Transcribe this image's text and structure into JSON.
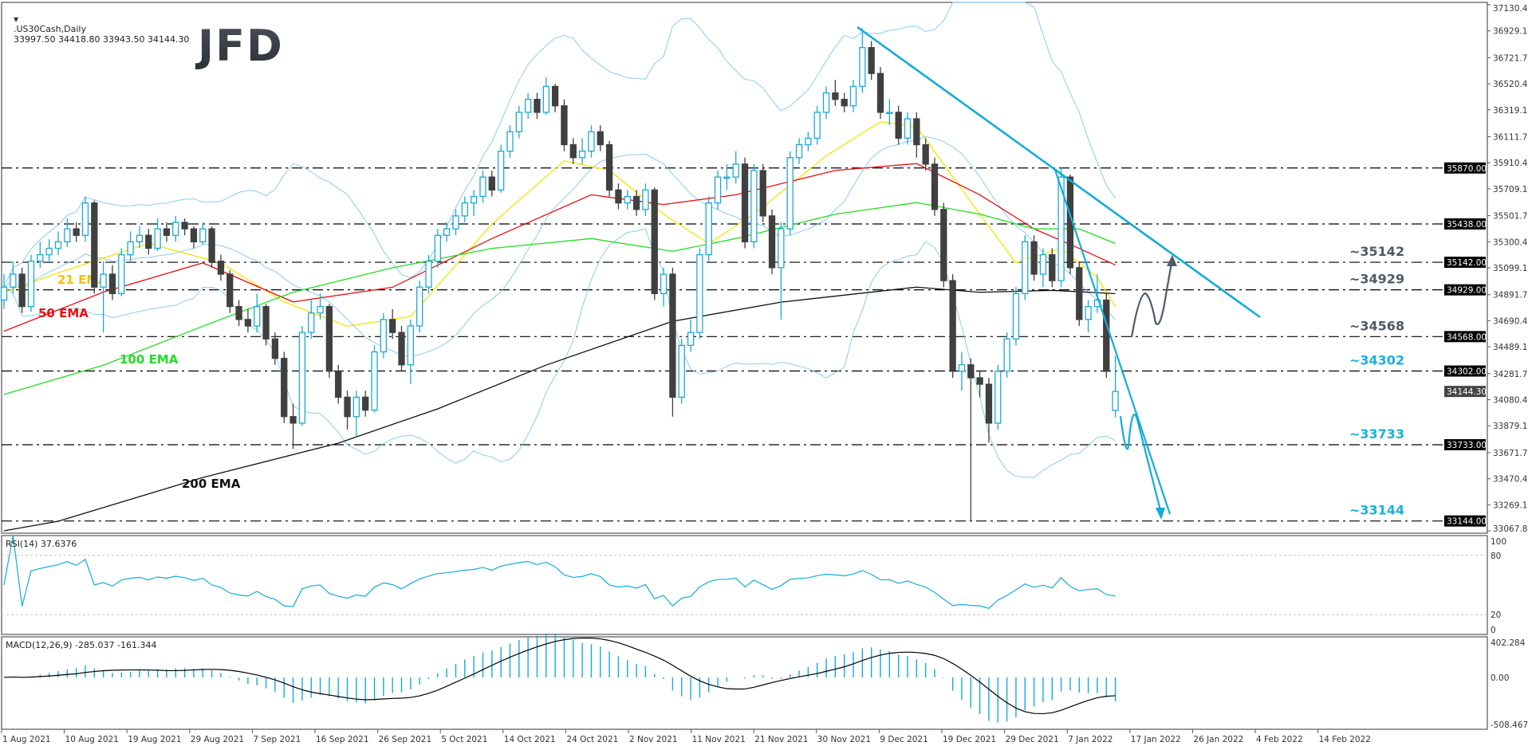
{
  "header": {
    "symbol": ".US30Cash,Daily",
    "ohlc_text": "33997.50 34418.80 33943.50 34144.30",
    "rsi_label": "RSI(14) 37.6376",
    "macd_label": "MACD(12,26,9) -285.037 -161.344"
  },
  "logo": "JFD",
  "colors": {
    "bull": "#1aa9d6",
    "bear": "#404040",
    "ema21": "#f2e600",
    "ema21_label": "#f5c000",
    "ema50": "#e81010",
    "ema100": "#22dd22",
    "ema200": "#111111",
    "bollinger": "#8ccbf0",
    "trendline": "#12acd8",
    "level_dark": "#4f5965",
    "level_cyan": "#16b2dc",
    "rsi": "#12acd8",
    "macd_hist": "#12acd8",
    "macd_signal": "#000000"
  },
  "chart_data": {
    "type": "candlestick",
    "title": ".US30Cash,Daily",
    "ylim": [
      33067.8,
      37130.4
    ],
    "price_ticks": [
      "37130.40",
      "36929.10",
      "36721.70",
      "36520.40",
      "36319.10",
      "36111.70",
      "35910.40",
      "35709.10",
      "35501.70",
      "35300.40",
      "35099.10",
      "34891.70",
      "34690.40",
      "34489.10",
      "34281.70",
      "34080.40",
      "33879.10",
      "33671.70",
      "33470.40",
      "33269.10",
      "33067.80"
    ],
    "date_ticks": [
      "1 Aug 2021",
      "10 Aug 2021",
      "19 Aug 2021",
      "29 Aug 2021",
      "7 Sep 2021",
      "16 Sep 2021",
      "26 Sep 2021",
      "5 Oct 2021",
      "14 Oct 2021",
      "24 Oct 2021",
      "2 Nov 2021",
      "11 Nov 2021",
      "21 Nov 2021",
      "30 Nov 2021",
      "9 Dec 2021",
      "19 Dec 2021",
      "29 Dec 2021",
      "7 Jan 2022",
      "17 Jan 2022",
      "26 Jan 2022",
      "4 Feb 2022",
      "14 Feb 2022"
    ],
    "current_price": "34144.30",
    "ohlc": [
      [
        34850,
        35050,
        34780,
        34950
      ],
      [
        34950,
        35150,
        34900,
        35050
      ],
      [
        35050,
        35100,
        34750,
        34800
      ],
      [
        34800,
        35200,
        34760,
        35150
      ],
      [
        35150,
        35300,
        35100,
        35200
      ],
      [
        35200,
        35320,
        35150,
        35250
      ],
      [
        35250,
        35380,
        35200,
        35300
      ],
      [
        35300,
        35480,
        35260,
        35400
      ],
      [
        35400,
        35450,
        35300,
        35350
      ],
      [
        35350,
        35650,
        35300,
        35600
      ],
      [
        35600,
        35620,
        34900,
        34950
      ],
      [
        34950,
        35150,
        34600,
        35050
      ],
      [
        35050,
        35120,
        34850,
        34900
      ],
      [
        34900,
        35250,
        34880,
        35200
      ],
      [
        35200,
        35380,
        35150,
        35300
      ],
      [
        35300,
        35420,
        35250,
        35350
      ],
      [
        35350,
        35400,
        35200,
        35250
      ],
      [
        35250,
        35480,
        35230,
        35400
      ],
      [
        35400,
        35450,
        35300,
        35350
      ],
      [
        35350,
        35500,
        35300,
        35450
      ],
      [
        35450,
        35480,
        35350,
        35400
      ],
      [
        35400,
        35420,
        35250,
        35300
      ],
      [
        35300,
        35450,
        35280,
        35400
      ],
      [
        35400,
        35420,
        35100,
        35150
      ],
      [
        35150,
        35200,
        35000,
        35050
      ],
      [
        35050,
        35080,
        34750,
        34800
      ],
      [
        34800,
        34850,
        34650,
        34700
      ],
      [
        34700,
        34780,
        34600,
        34650
      ],
      [
        34650,
        34900,
        34600,
        34800
      ],
      [
        34800,
        34820,
        34500,
        34550
      ],
      [
        34550,
        34600,
        34350,
        34400
      ],
      [
        34400,
        34450,
        33900,
        33950
      ],
      [
        33950,
        34050,
        33700,
        33900
      ],
      [
        33900,
        34650,
        33880,
        34600
      ],
      [
        34600,
        34850,
        34550,
        34750
      ],
      [
        34750,
        34900,
        34700,
        34800
      ],
      [
        34800,
        34820,
        34250,
        34300
      ],
      [
        34300,
        34350,
        34050,
        34100
      ],
      [
        34100,
        34150,
        33850,
        33950
      ],
      [
        33950,
        34150,
        33800,
        34100
      ],
      [
        34100,
        34150,
        33950,
        34000
      ],
      [
        34000,
        34500,
        33980,
        34450
      ],
      [
        34450,
        34750,
        34400,
        34700
      ],
      [
        34700,
        34780,
        34550,
        34600
      ],
      [
        34600,
        34650,
        34300,
        34350
      ],
      [
        34350,
        34700,
        34200,
        34650
      ],
      [
        34650,
        35000,
        34600,
        34950
      ],
      [
        34950,
        35200,
        34900,
        35150
      ],
      [
        35150,
        35400,
        35100,
        35350
      ],
      [
        35350,
        35450,
        35300,
        35400
      ],
      [
        35400,
        35550,
        35350,
        35500
      ],
      [
        35500,
        35650,
        35450,
        35600
      ],
      [
        35600,
        35700,
        35500,
        35650
      ],
      [
        35650,
        35850,
        35600,
        35800
      ],
      [
        35800,
        35850,
        35650,
        35700
      ],
      [
        35700,
        36050,
        35680,
        36000
      ],
      [
        36000,
        36200,
        35950,
        36150
      ],
      [
        36150,
        36350,
        36100,
        36300
      ],
      [
        36300,
        36450,
        36250,
        36400
      ],
      [
        36400,
        36450,
        36250,
        36300
      ],
      [
        36300,
        36570,
        36280,
        36500
      ],
      [
        36500,
        36520,
        36300,
        36350
      ],
      [
        36350,
        36400,
        36000,
        36050
      ],
      [
        36050,
        36100,
        35900,
        35950
      ],
      [
        35950,
        36100,
        35900,
        36000
      ],
      [
        36000,
        36200,
        35950,
        36150
      ],
      [
        36150,
        36200,
        36000,
        36050
      ],
      [
        36050,
        36080,
        35650,
        35700
      ],
      [
        35700,
        35750,
        35550,
        35600
      ],
      [
        35600,
        35700,
        35550,
        35650
      ],
      [
        35650,
        35700,
        35500,
        35550
      ],
      [
        35550,
        35750,
        35500,
        35700
      ],
      [
        35700,
        35720,
        34850,
        34900
      ],
      [
        34900,
        35100,
        34800,
        35050
      ],
      [
        35050,
        35100,
        33950,
        34100
      ],
      [
        34100,
        34550,
        34050,
        34500
      ],
      [
        34500,
        34700,
        34450,
        34600
      ],
      [
        34600,
        35250,
        34550,
        35200
      ],
      [
        35200,
        35650,
        35150,
        35600
      ],
      [
        35600,
        35850,
        35550,
        35800
      ],
      [
        35800,
        35900,
        35700,
        35800
      ],
      [
        35800,
        36000,
        35750,
        35900
      ],
      [
        35900,
        35950,
        35250,
        35300
      ],
      [
        35300,
        35900,
        35250,
        35850
      ],
      [
        35850,
        35900,
        35450,
        35500
      ],
      [
        35500,
        35550,
        35050,
        35100
      ],
      [
        35100,
        35450,
        34700,
        35400
      ],
      [
        35400,
        36000,
        35350,
        35950
      ],
      [
        35950,
        36100,
        35900,
        36050
      ],
      [
        36050,
        36150,
        36000,
        36100
      ],
      [
        36100,
        36350,
        36050,
        36300
      ],
      [
        36300,
        36500,
        36250,
        36450
      ],
      [
        36450,
        36550,
        36350,
        36400
      ],
      [
        36400,
        36450,
        36300,
        36350
      ],
      [
        36350,
        36550,
        36300,
        36500
      ],
      [
        36500,
        36950,
        36450,
        36800
      ],
      [
        36800,
        36850,
        36550,
        36600
      ],
      [
        36600,
        36650,
        36250,
        36300
      ],
      [
        36300,
        36400,
        36200,
        36300
      ],
      [
        36300,
        36350,
        36050,
        36100
      ],
      [
        36100,
        36300,
        36050,
        36250
      ],
      [
        36250,
        36300,
        35950,
        36050
      ],
      [
        36050,
        36100,
        35850,
        35900
      ],
      [
        35900,
        35950,
        35500,
        35550
      ],
      [
        35550,
        35600,
        34950,
        35000
      ],
      [
        35000,
        35050,
        34250,
        34300
      ],
      [
        34300,
        34450,
        34150,
        34350
      ],
      [
        34350,
        34400,
        33144,
        34250
      ],
      [
        34250,
        34300,
        34100,
        34200
      ],
      [
        34200,
        34250,
        33750,
        33900
      ],
      [
        33900,
        34350,
        33850,
        34300
      ],
      [
        34300,
        34600,
        34250,
        34550
      ],
      [
        34550,
        34950,
        34500,
        34900
      ],
      [
        34900,
        35350,
        34850,
        35300
      ],
      [
        35300,
        35350,
        35000,
        35050
      ],
      [
        35050,
        35250,
        34950,
        35200
      ],
      [
        35200,
        35250,
        34950,
        35000
      ],
      [
        35000,
        35870,
        34950,
        35800
      ],
      [
        35800,
        35820,
        35050,
        35100
      ],
      [
        35100,
        35150,
        34650,
        34700
      ],
      [
        34700,
        34850,
        34600,
        34800
      ],
      [
        34800,
        35050,
        34750,
        34850
      ],
      [
        34850,
        34900,
        34250,
        34300
      ],
      [
        33997.5,
        34418.8,
        33943.5,
        34144.3
      ]
    ],
    "moving_averages": [
      {
        "name": "21 EMA",
        "color_key": "ema21",
        "points": [
          [
            0,
            34911
          ],
          [
            6,
            35061
          ],
          [
            16,
            35287
          ],
          [
            24,
            35137
          ],
          [
            31,
            34836
          ],
          [
            38,
            34648
          ],
          [
            45,
            34723
          ],
          [
            54,
            35437
          ],
          [
            62,
            35926
          ],
          [
            67,
            35851
          ],
          [
            73,
            35513
          ],
          [
            78,
            35287
          ],
          [
            83,
            35513
          ],
          [
            91,
            35964
          ],
          [
            97,
            36227
          ],
          [
            101,
            36189
          ],
          [
            108,
            35513
          ],
          [
            112,
            35137
          ],
          [
            117,
            35249
          ],
          [
            121,
            35024
          ],
          [
            123,
            34799
          ]
        ]
      },
      {
        "name": "50 EMA",
        "color_key": "ema50",
        "points": [
          [
            0,
            34610
          ],
          [
            11,
            34911
          ],
          [
            22,
            35137
          ],
          [
            32,
            34836
          ],
          [
            43,
            34949
          ],
          [
            54,
            35325
          ],
          [
            65,
            35663
          ],
          [
            73,
            35588
          ],
          [
            81,
            35663
          ],
          [
            92,
            35851
          ],
          [
            101,
            35904
          ],
          [
            108,
            35663
          ],
          [
            114,
            35400
          ],
          [
            119,
            35249
          ],
          [
            123,
            35121
          ]
        ]
      },
      {
        "name": "100 EMA",
        "color_key": "ema100",
        "points": [
          [
            0,
            34121
          ],
          [
            11,
            34347
          ],
          [
            22,
            34648
          ],
          [
            32,
            34911
          ],
          [
            43,
            35099
          ],
          [
            54,
            35249
          ],
          [
            65,
            35325
          ],
          [
            74,
            35227
          ],
          [
            81,
            35325
          ],
          [
            92,
            35513
          ],
          [
            101,
            35603
          ],
          [
            108,
            35513
          ],
          [
            114,
            35400
          ],
          [
            119,
            35400
          ],
          [
            123,
            35287
          ]
        ]
      },
      {
        "name": "200 EMA",
        "color_key": "ema200",
        "points": [
          [
            0,
            33068
          ],
          [
            6,
            33142
          ],
          [
            22,
            33480
          ],
          [
            37,
            33745
          ],
          [
            48,
            34010
          ],
          [
            60,
            34348
          ],
          [
            74,
            34686
          ],
          [
            86,
            34834
          ],
          [
            101,
            34950
          ],
          [
            108,
            34910
          ],
          [
            116,
            34925
          ],
          [
            123,
            34900
          ]
        ]
      }
    ],
    "bollinger": {
      "period": 20,
      "deviations": 2
    },
    "levels": [
      {
        "value": "35870.00",
        "label": ""
      },
      {
        "value": "35438.00",
        "label": ""
      },
      {
        "value": "35142.00",
        "label": "~35142",
        "tone": "dark"
      },
      {
        "value": "34929.00",
        "label": "~34929",
        "tone": "dark"
      },
      {
        "value": "34568.00",
        "label": "~34568",
        "tone": "dark"
      },
      {
        "value": "34302.00",
        "label": "~34302",
        "tone": "cyan"
      },
      {
        "value": "33733.00",
        "label": "~33733",
        "tone": "cyan"
      },
      {
        "value": "33144.00",
        "label": "~33144",
        "tone": "cyan"
      }
    ],
    "rsi": {
      "period": 14,
      "ylim": [
        0,
        100
      ],
      "ticks": [
        "100",
        "80",
        "20",
        "0"
      ],
      "levels": [
        80,
        20
      ]
    },
    "macd": {
      "fast": 12,
      "slow": 26,
      "signal": 9,
      "ylim": [
        -508.467,
        402.284
      ],
      "ticks": [
        "402.284",
        "0.00",
        "-508.467"
      ]
    }
  }
}
